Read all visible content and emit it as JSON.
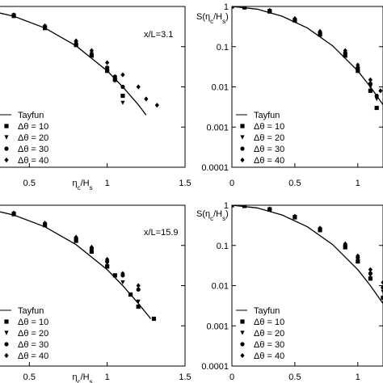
{
  "chart_data": [
    {
      "type": "scatter",
      "title": "",
      "annotation": "x/L=3.1",
      "ylabel": "",
      "xlabel": "η_c/H_s",
      "xlim": [
        0,
        1.5
      ],
      "ylim": [
        0.0001,
        1
      ],
      "yscale": "log",
      "x_ticks": [
        "0.5",
        "1",
        "1.5"
      ],
      "y_ticks": [],
      "legend_position": "bottom-left",
      "series": [
        {
          "name": "Tayfun",
          "kind": "line",
          "x": [
            0,
            0.2,
            0.4,
            0.6,
            0.8,
            1.0,
            1.1,
            1.2,
            1.25
          ],
          "y": [
            1,
            0.86,
            0.57,
            0.29,
            0.105,
            0.025,
            0.01,
            0.0036,
            0.002
          ]
        },
        {
          "name": "Δθ = 10",
          "marker": "square",
          "x": [
            0,
            0.2,
            0.4,
            0.6,
            0.8,
            0.9,
            1.0,
            1.05,
            1.1
          ],
          "y": [
            1,
            0.84,
            0.58,
            0.29,
            0.11,
            0.06,
            0.025,
            0.015,
            0.006
          ]
        },
        {
          "name": "Δθ = 20",
          "marker": "triangle",
          "x": [
            0,
            0.2,
            0.4,
            0.6,
            0.8,
            0.9,
            1.0,
            1.05,
            1.1
          ],
          "y": [
            1,
            0.86,
            0.6,
            0.31,
            0.12,
            0.065,
            0.028,
            0.014,
            0.004
          ]
        },
        {
          "name": "Δθ = 30",
          "marker": "circle",
          "x": [
            0,
            0.2,
            0.4,
            0.6,
            0.8,
            0.9,
            1.0,
            1.05,
            1.1
          ],
          "y": [
            1,
            0.85,
            0.6,
            0.31,
            0.115,
            0.062,
            0.03,
            0.018,
            0.01
          ]
        },
        {
          "name": "Δθ = 40",
          "marker": "diamond",
          "x": [
            0,
            0.2,
            0.4,
            0.6,
            0.8,
            0.9,
            1.0,
            1.1,
            1.2,
            1.25,
            1.32
          ],
          "y": [
            1,
            0.87,
            0.62,
            0.33,
            0.14,
            0.08,
            0.04,
            0.02,
            0.01,
            0.005,
            0.0035
          ]
        }
      ]
    },
    {
      "type": "scatter",
      "title": "",
      "annotation": "",
      "ylabel": "S(η_c/H_s)",
      "xlabel": "",
      "xlim": [
        0,
        1.2
      ],
      "ylim": [
        0.0001,
        1
      ],
      "yscale": "log",
      "x_ticks": [
        "0",
        "0.5",
        "1"
      ],
      "y_ticks": [
        "1",
        "0.1",
        "0.01",
        "0.001",
        "0.0001"
      ],
      "legend_position": "bottom-left",
      "series": [
        {
          "name": "Tayfun",
          "kind": "line",
          "x": [
            0,
            0.2,
            0.4,
            0.6,
            0.8,
            1.0,
            1.1,
            1.2
          ],
          "y": [
            1,
            0.86,
            0.57,
            0.29,
            0.105,
            0.025,
            0.01,
            0.0036
          ]
        },
        {
          "name": "Δθ = 10",
          "marker": "square",
          "x": [
            0,
            0.1,
            0.3,
            0.5,
            0.7,
            0.9,
            1.0,
            1.1,
            1.15
          ],
          "y": [
            1,
            0.95,
            0.75,
            0.45,
            0.2,
            0.06,
            0.025,
            0.008,
            0.003
          ]
        },
        {
          "name": "Δθ = 20",
          "marker": "triangle",
          "x": [
            0,
            0.1,
            0.3,
            0.5,
            0.7,
            0.9,
            1.0,
            1.1,
            1.15
          ],
          "y": [
            1,
            0.96,
            0.77,
            0.46,
            0.21,
            0.065,
            0.028,
            0.01,
            0.005
          ]
        },
        {
          "name": "Δθ = 30",
          "marker": "circle",
          "x": [
            0,
            0.1,
            0.3,
            0.5,
            0.7,
            0.9,
            1.0,
            1.1,
            1.15
          ],
          "y": [
            1,
            0.95,
            0.76,
            0.47,
            0.22,
            0.07,
            0.03,
            0.012,
            0.006
          ]
        },
        {
          "name": "Δθ = 40",
          "marker": "diamond",
          "x": [
            0,
            0.1,
            0.3,
            0.5,
            0.7,
            0.9,
            1.0,
            1.1,
            1.18
          ],
          "y": [
            1,
            0.97,
            0.8,
            0.5,
            0.24,
            0.08,
            0.035,
            0.015,
            0.008
          ]
        }
      ]
    },
    {
      "type": "scatter",
      "title": "",
      "annotation": "x/L=15.9",
      "ylabel": "",
      "xlabel": "η_c/H_s",
      "xlim": [
        0,
        1.5
      ],
      "ylim": [
        0.0001,
        1
      ],
      "yscale": "log",
      "x_ticks": [
        "0.5",
        "1",
        "1.5"
      ],
      "y_ticks": [],
      "legend_position": "bottom-left",
      "series": [
        {
          "name": "Tayfun",
          "kind": "line",
          "x": [
            0,
            0.2,
            0.4,
            0.6,
            0.8,
            1.0,
            1.1,
            1.2,
            1.28
          ],
          "y": [
            1,
            0.86,
            0.57,
            0.29,
            0.105,
            0.025,
            0.01,
            0.0036,
            0.0015
          ]
        },
        {
          "name": "Δθ = 10",
          "marker": "square",
          "x": [
            0,
            0.2,
            0.4,
            0.6,
            0.8,
            0.9,
            1.0,
            1.05,
            1.15,
            1.2,
            1.3
          ],
          "y": [
            1,
            0.86,
            0.6,
            0.32,
            0.13,
            0.07,
            0.03,
            0.018,
            0.006,
            0.003,
            0.0015
          ]
        },
        {
          "name": "Δθ = 20",
          "marker": "triangle",
          "x": [
            0,
            0.2,
            0.4,
            0.6,
            0.8,
            0.9,
            1.0,
            1.1,
            1.2
          ],
          "y": [
            1,
            0.87,
            0.61,
            0.33,
            0.14,
            0.075,
            0.035,
            0.012,
            0.004
          ]
        },
        {
          "name": "Δθ = 30",
          "marker": "circle",
          "x": [
            0,
            0.2,
            0.4,
            0.6,
            0.8,
            0.9,
            1.0,
            1.1,
            1.2
          ],
          "y": [
            1,
            0.88,
            0.63,
            0.35,
            0.15,
            0.085,
            0.04,
            0.018,
            0.008
          ]
        },
        {
          "name": "Δθ = 40",
          "marker": "diamond",
          "x": [
            0,
            0.2,
            0.4,
            0.6,
            0.8,
            0.9,
            1.0,
            1.1,
            1.2
          ],
          "y": [
            1,
            0.88,
            0.64,
            0.36,
            0.16,
            0.09,
            0.045,
            0.02,
            0.01
          ]
        }
      ]
    },
    {
      "type": "scatter",
      "title": "",
      "annotation": "",
      "ylabel": "S(η_c/H_s)",
      "xlabel": "",
      "xlim": [
        0,
        1.2
      ],
      "ylim": [
        0.0001,
        1
      ],
      "yscale": "log",
      "x_ticks": [
        "0",
        "0.5",
        "1"
      ],
      "y_ticks": [
        "1",
        "0.1",
        "0.01",
        "0.001",
        "0.0001"
      ],
      "legend_position": "bottom-left",
      "series": [
        {
          "name": "Tayfun",
          "kind": "line",
          "x": [
            0,
            0.2,
            0.4,
            0.6,
            0.8,
            1.0,
            1.1,
            1.2
          ],
          "y": [
            1,
            0.86,
            0.57,
            0.29,
            0.105,
            0.025,
            0.01,
            0.0036
          ]
        },
        {
          "name": "Δθ = 10",
          "marker": "square",
          "x": [
            0,
            0.1,
            0.3,
            0.5,
            0.7,
            0.9,
            1.0,
            1.1,
            1.2
          ],
          "y": [
            1,
            0.96,
            0.78,
            0.5,
            0.24,
            0.09,
            0.04,
            0.015,
            0.005
          ]
        },
        {
          "name": "Δθ = 20",
          "marker": "triangle",
          "x": [
            0,
            0.1,
            0.3,
            0.5,
            0.7,
            0.9,
            1.0,
            1.1,
            1.2
          ],
          "y": [
            1,
            0.96,
            0.79,
            0.51,
            0.25,
            0.095,
            0.045,
            0.018,
            0.007
          ]
        },
        {
          "name": "Δθ = 30",
          "marker": "circle",
          "x": [
            0,
            0.1,
            0.3,
            0.5,
            0.7,
            0.9,
            1.0,
            1.1,
            1.2
          ],
          "y": [
            1,
            0.97,
            0.8,
            0.52,
            0.26,
            0.1,
            0.05,
            0.02,
            0.009
          ]
        },
        {
          "name": "Δθ = 40",
          "marker": "diamond",
          "x": [
            0,
            0.1,
            0.3,
            0.5,
            0.7,
            0.9,
            1.0,
            1.1,
            1.2
          ],
          "y": [
            1,
            0.97,
            0.81,
            0.53,
            0.27,
            0.11,
            0.055,
            0.025,
            0.012
          ]
        }
      ]
    }
  ]
}
